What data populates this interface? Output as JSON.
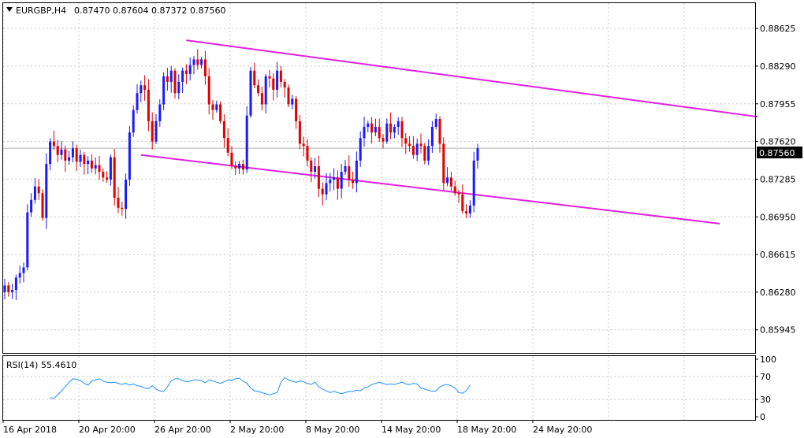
{
  "header": {
    "symbol": "EURGBP,H4",
    "ohlc": "0.87470 0.87604 0.87372 0.87560"
  },
  "price_panel": {
    "current_price": "0.87560",
    "ticks": [
      "0.88625",
      "0.88290",
      "0.87955",
      "0.87620",
      "0.87285",
      "0.86950",
      "0.86615",
      "0.86280",
      "0.85945"
    ]
  },
  "rsi_panel": {
    "label": "RSI(14) 55.4610",
    "ticks": [
      "100",
      "70",
      "30",
      "0"
    ]
  },
  "time_axis": {
    "labels": [
      "16 Apr 2018",
      "20 Apr 20:00",
      "26 Apr 20:00",
      "2 May 20:00",
      "8 May 20:00",
      "14 May 20:00",
      "18 May 20:00",
      "24 May 20:00"
    ]
  },
  "colors": {
    "bull": "#1a1aff",
    "bear": "#e00000",
    "channel": "#e020e0",
    "rsi": "#1e90ff",
    "grid": "#c8c8c8"
  },
  "chart_data": {
    "type": "candlestick",
    "symbol": "EURGBP",
    "timeframe": "H4",
    "ylim": [
      0.8574,
      0.8885
    ],
    "closes": [
      0.8634,
      0.8628,
      0.863,
      0.8641,
      0.8645,
      0.865,
      0.8699,
      0.871,
      0.8722,
      0.8716,
      0.8694,
      0.8742,
      0.8762,
      0.8758,
      0.875,
      0.8755,
      0.8745,
      0.8748,
      0.8756,
      0.8744,
      0.875,
      0.8742,
      0.8745,
      0.8738,
      0.8741,
      0.8735,
      0.873,
      0.8728,
      0.8748,
      0.8712,
      0.8703,
      0.8702,
      0.8728,
      0.877,
      0.879,
      0.8805,
      0.8812,
      0.8808,
      0.878,
      0.8762,
      0.878,
      0.8795,
      0.882,
      0.8815,
      0.8825,
      0.8805,
      0.8815,
      0.8825,
      0.8822,
      0.883,
      0.8835,
      0.883,
      0.8835,
      0.882,
      0.8795,
      0.879,
      0.8795,
      0.878,
      0.8765,
      0.8752,
      0.874,
      0.8738,
      0.8742,
      0.8737,
      0.8785,
      0.8825,
      0.8812,
      0.8805,
      0.8795,
      0.882,
      0.8818,
      0.8808,
      0.8825,
      0.8815,
      0.881,
      0.8795,
      0.88,
      0.878,
      0.876,
      0.8758,
      0.8745,
      0.8735,
      0.874,
      0.872,
      0.8715,
      0.8725,
      0.8728,
      0.873,
      0.872,
      0.8735,
      0.874,
      0.8728,
      0.8725,
      0.8745,
      0.8765,
      0.8775,
      0.8778,
      0.877,
      0.8775,
      0.8765,
      0.8762,
      0.8778,
      0.877,
      0.8775,
      0.878,
      0.8765,
      0.876,
      0.8758,
      0.875,
      0.876,
      0.8758,
      0.8745,
      0.8758,
      0.8775,
      0.8782,
      0.876,
      0.8725,
      0.873,
      0.8722,
      0.8716,
      0.8715,
      0.87,
      0.8698,
      0.8705,
      0.8745,
      0.8756
    ],
    "channel_lines": [
      {
        "name": "upper",
        "from": {
          "index": 48,
          "price": 0.8852
        },
        "to": {
          "index": 199,
          "price": 0.8784
        }
      },
      {
        "name": "lower",
        "from": {
          "index": 36,
          "price": 0.875
        },
        "to": {
          "index": 189,
          "price": 0.8689
        }
      }
    ],
    "rsi": {
      "period": 14,
      "last_value": 55.461,
      "ylim": [
        0,
        100
      ],
      "levels": [
        70,
        30
      ],
      "values": [
        33,
        32,
        38,
        45,
        52,
        60,
        66,
        65,
        63,
        58,
        55,
        62,
        64,
        66,
        62,
        60,
        59,
        60,
        58,
        56,
        58,
        55,
        57,
        54,
        53,
        50,
        49,
        54,
        48,
        45,
        44,
        52,
        62,
        66,
        66,
        63,
        61,
        62,
        64,
        64,
        63,
        59,
        64,
        62,
        60,
        58,
        61,
        64,
        63,
        66,
        67,
        62,
        58,
        50,
        45,
        44,
        42,
        40,
        38,
        40,
        42,
        60,
        68,
        64,
        62,
        60,
        62,
        61,
        58,
        56,
        60,
        52,
        48,
        45,
        42,
        44,
        42,
        40,
        42,
        44,
        44,
        46,
        45,
        50,
        52,
        56,
        58,
        60,
        58,
        56,
        57,
        56,
        58,
        60,
        57,
        56,
        58,
        57,
        50,
        48,
        46,
        44,
        45,
        52,
        55,
        56,
        54,
        50,
        42,
        41,
        45,
        55
      ]
    }
  }
}
